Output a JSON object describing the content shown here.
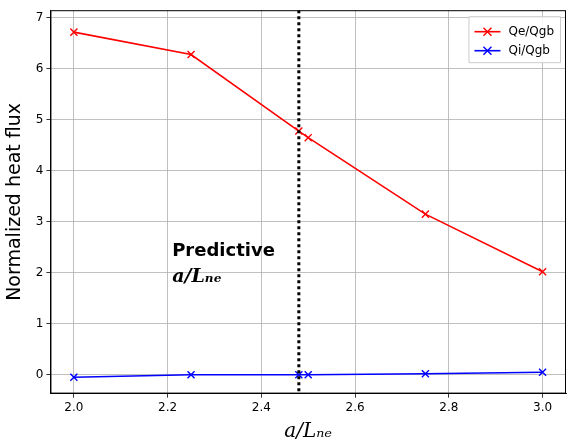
{
  "chart_data": {
    "type": "line",
    "x_label": "a/Lₙₑ",
    "y_label": "Normalized heat flux",
    "x": [
      2.0,
      2.25,
      2.48,
      2.5,
      2.75,
      3.0
    ],
    "series": [
      {
        "name": "Qe/Qgb",
        "color": "#ff0000",
        "marker": "x",
        "values": [
          6.72,
          6.28,
          4.78,
          4.65,
          3.15,
          2.02
        ]
      },
      {
        "name": "Qi/Qgb",
        "color": "#0000ff",
        "marker": "x",
        "values": [
          -0.05,
          0.0,
          0.0,
          0.0,
          0.02,
          0.05
        ]
      }
    ],
    "xlim": [
      1.95,
      3.05
    ],
    "xticks": [
      {
        "value": 2,
        "label": "2.0"
      },
      {
        "value": 2.2,
        "label": "2.2"
      },
      {
        "value": 2.4,
        "label": "2.4"
      },
      {
        "value": 2.6,
        "label": "2.6"
      },
      {
        "value": 2.8,
        "label": "2.8"
      },
      {
        "value": 3,
        "label": "3.0"
      }
    ],
    "ylim": [
      -0.37,
      7.15
    ],
    "yticks": [
      0,
      1,
      2,
      3,
      4,
      5,
      6,
      7
    ],
    "grid": true,
    "legend": "upper right",
    "annotations": [
      {
        "text": [
          "Predictive",
          "a/Lₙₑ"
        ],
        "x": 2.48
      }
    ]
  }
}
